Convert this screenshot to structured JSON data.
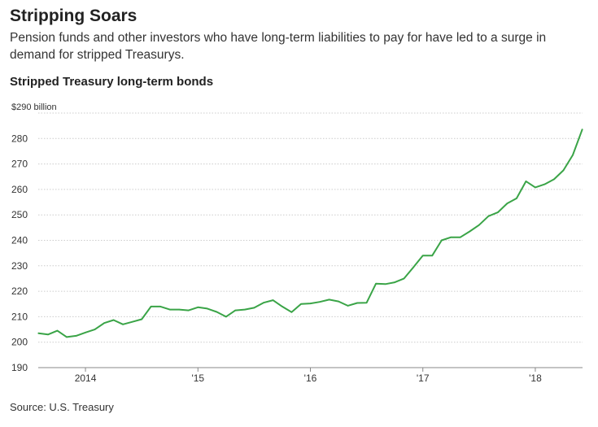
{
  "header": {
    "title": "Stripping Soars",
    "subtitle": "Pension funds and other investors who have long-term liabilities to pay for have led to a surge in demand for stripped Treasurys."
  },
  "source": "Source: U.S. Treasury",
  "colors": {
    "line": "#3aa447",
    "grid": "#cccccc",
    "axis": "#888888"
  },
  "chart_data": {
    "type": "line",
    "title": "Stripped Treasury long-term bonds",
    "xlabel": "",
    "ylabel": "",
    "unit_label": "$290 billion",
    "ylim": [
      190,
      290
    ],
    "xlim": [
      2013.58,
      2018.42
    ],
    "yticks": [
      {
        "value": 280,
        "label": "280"
      },
      {
        "value": 270,
        "label": "270"
      },
      {
        "value": 260,
        "label": "260"
      },
      {
        "value": 250,
        "label": "250"
      },
      {
        "value": 240,
        "label": "240"
      },
      {
        "value": 230,
        "label": "230"
      },
      {
        "value": 220,
        "label": "220"
      },
      {
        "value": 210,
        "label": "210"
      },
      {
        "value": 200,
        "label": "200"
      },
      {
        "value": 190,
        "label": "190"
      }
    ],
    "xticks": [
      {
        "value": 2014,
        "label": "2014"
      },
      {
        "value": 2015,
        "label": "'15"
      },
      {
        "value": 2016,
        "label": "'16"
      },
      {
        "value": 2017,
        "label": "'17"
      },
      {
        "value": 2018,
        "label": "'18"
      }
    ],
    "series": [
      {
        "name": "Stripped Treasury long-term bonds",
        "x": [
          2013.583,
          2013.667,
          2013.75,
          2013.833,
          2013.917,
          2014.0,
          2014.083,
          2014.167,
          2014.25,
          2014.333,
          2014.417,
          2014.5,
          2014.583,
          2014.667,
          2014.75,
          2014.833,
          2014.917,
          2015.0,
          2015.083,
          2015.167,
          2015.25,
          2015.333,
          2015.417,
          2015.5,
          2015.583,
          2015.667,
          2015.75,
          2015.833,
          2015.917,
          2016.0,
          2016.083,
          2016.167,
          2016.25,
          2016.333,
          2016.417,
          2016.5,
          2016.583,
          2016.667,
          2016.75,
          2016.833,
          2016.917,
          2017.0,
          2017.083,
          2017.167,
          2017.25,
          2017.333,
          2017.417,
          2017.5,
          2017.583,
          2017.667,
          2017.75,
          2017.833,
          2017.917,
          2018.0,
          2018.083,
          2018.167,
          2018.25,
          2018.333,
          2018.417
        ],
        "values": [
          203.5,
          203.0,
          204.5,
          202.0,
          202.5,
          203.8,
          205.0,
          207.5,
          208.7,
          207.0,
          208.0,
          209.0,
          214.0,
          214.0,
          212.8,
          212.8,
          212.5,
          213.7,
          213.2,
          211.9,
          210.0,
          212.5,
          212.8,
          213.5,
          215.5,
          216.5,
          214.0,
          211.8,
          215.0,
          215.2,
          215.8,
          216.7,
          216.0,
          214.3,
          215.4,
          215.5,
          223.0,
          222.8,
          223.5,
          225.0,
          229.5,
          234.0,
          234.0,
          240.0,
          241.2,
          241.2,
          243.5,
          246.0,
          249.5,
          251.0,
          254.5,
          256.5,
          263.2,
          260.8,
          262.0,
          264.0,
          267.5,
          273.5,
          283.5
        ]
      }
    ]
  }
}
